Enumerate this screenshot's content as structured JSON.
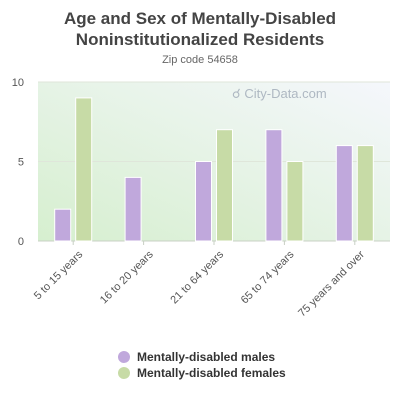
{
  "title_line1": "Age and Sex of Mentally-Disabled",
  "title_line2": "Noninstitutionalized Residents",
  "subtitle": "Zip code 54658",
  "watermark": "City-Data.com",
  "colors": {
    "males": "#c0a8dc",
    "females": "#c7dba6"
  },
  "chart_data": {
    "type": "bar",
    "title": "Age and Sex of Mentally-Disabled Noninstitutionalized Residents",
    "subtitle": "Zip code 54658",
    "categories": [
      "5 to 15 years",
      "16 to 20 years",
      "21 to 64 years",
      "65 to 74 years",
      "75 years and over"
    ],
    "series": [
      {
        "name": "Mentally-disabled males",
        "values": [
          2,
          4,
          5,
          7,
          6
        ]
      },
      {
        "name": "Mentally-disabled females",
        "values": [
          9,
          0,
          7,
          5,
          6
        ]
      }
    ],
    "ylim": [
      0,
      10
    ],
    "yticks": [
      0,
      5,
      10
    ],
    "xlabel": "",
    "ylabel": "",
    "grid": true,
    "legend_position": "bottom"
  }
}
